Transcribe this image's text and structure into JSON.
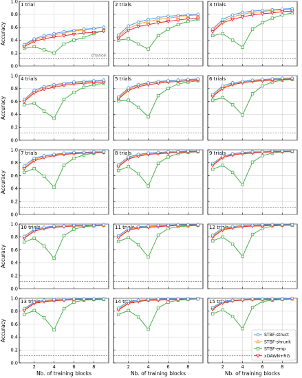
{
  "chart_data": {
    "type": "line",
    "ylabel": "Accuracy",
    "xlabel": "Nb. of training blocks",
    "xlim": [
      0.5,
      9.5
    ],
    "ylim": [
      0,
      1
    ],
    "x": [
      1,
      2,
      3,
      4,
      5,
      6,
      7,
      8,
      9
    ],
    "x_ticks": [
      2,
      4,
      6,
      8
    ],
    "y_ticks": [
      "0.0",
      "0.2",
      "0.4",
      "0.6",
      "0.8",
      "1.0"
    ],
    "grid": true,
    "chance_level": 0.111,
    "chance_label": "chance",
    "legend_placement": "lower-right of last panel",
    "series_styles": [
      {
        "name": "STBF-struct",
        "color": "#4a90e2",
        "marker": "circle"
      },
      {
        "name": "STBF-shrunk",
        "color": "#ff9a2e",
        "marker": "triangle-up"
      },
      {
        "name": "STBF-emp",
        "color": "#44b144",
        "marker": "square"
      },
      {
        "name": "xDAWN+RG",
        "color": "#e8252a",
        "marker": "triangle-down"
      }
    ],
    "panels": [
      {
        "title": "1 trial",
        "series": [
          {
            "name": "STBF-struct",
            "values": [
              0.33,
              0.42,
              0.47,
              0.5,
              0.53,
              0.55,
              0.57,
              0.58,
              0.6
            ]
          },
          {
            "name": "STBF-shrunk",
            "values": [
              0.32,
              0.4,
              0.45,
              0.48,
              0.51,
              0.54,
              0.56,
              0.58,
              0.6
            ]
          },
          {
            "name": "STBF-emp",
            "values": [
              0.27,
              0.3,
              0.25,
              0.2,
              0.34,
              0.4,
              0.44,
              0.5,
              0.55
            ]
          },
          {
            "name": "xDAWN+RG",
            "values": [
              0.3,
              0.38,
              0.42,
              0.45,
              0.47,
              0.49,
              0.51,
              0.52,
              0.54
            ]
          }
        ]
      },
      {
        "title": "2 trials",
        "series": [
          {
            "name": "STBF-struct",
            "values": [
              0.48,
              0.62,
              0.68,
              0.72,
              0.75,
              0.77,
              0.78,
              0.79,
              0.8
            ]
          },
          {
            "name": "STBF-shrunk",
            "values": [
              0.46,
              0.58,
              0.65,
              0.69,
              0.72,
              0.74,
              0.76,
              0.78,
              0.79
            ]
          },
          {
            "name": "STBF-emp",
            "values": [
              0.4,
              0.42,
              0.34,
              0.26,
              0.47,
              0.57,
              0.64,
              0.69,
              0.72
            ]
          },
          {
            "name": "xDAWN+RG",
            "values": [
              0.43,
              0.55,
              0.61,
              0.64,
              0.67,
              0.69,
              0.71,
              0.73,
              0.74
            ]
          }
        ]
      },
      {
        "title": "3 trials",
        "series": [
          {
            "name": "STBF-struct",
            "values": [
              0.57,
              0.72,
              0.79,
              0.83,
              0.85,
              0.86,
              0.87,
              0.88,
              0.89
            ]
          },
          {
            "name": "STBF-shrunk",
            "values": [
              0.55,
              0.69,
              0.76,
              0.8,
              0.83,
              0.84,
              0.86,
              0.87,
              0.88
            ]
          },
          {
            "name": "STBF-emp",
            "values": [
              0.47,
              0.5,
              0.4,
              0.29,
              0.57,
              0.67,
              0.74,
              0.79,
              0.82
            ]
          },
          {
            "name": "xDAWN+RG",
            "values": [
              0.53,
              0.67,
              0.72,
              0.76,
              0.79,
              0.81,
              0.82,
              0.84,
              0.85
            ]
          }
        ]
      },
      {
        "title": "4 trials",
        "series": [
          {
            "name": "STBF-struct",
            "values": [
              0.63,
              0.77,
              0.83,
              0.86,
              0.88,
              0.9,
              0.91,
              0.92,
              0.93
            ]
          },
          {
            "name": "STBF-shrunk",
            "values": [
              0.61,
              0.75,
              0.81,
              0.84,
              0.87,
              0.89,
              0.9,
              0.91,
              0.92
            ]
          },
          {
            "name": "STBF-emp",
            "values": [
              0.55,
              0.57,
              0.45,
              0.34,
              0.63,
              0.74,
              0.82,
              0.86,
              0.88
            ]
          },
          {
            "name": "xDAWN+RG",
            "values": [
              0.6,
              0.73,
              0.79,
              0.82,
              0.85,
              0.87,
              0.88,
              0.89,
              0.9
            ]
          }
        ]
      },
      {
        "title": "5 trials",
        "series": [
          {
            "name": "STBF-struct",
            "values": [
              0.67,
              0.81,
              0.86,
              0.89,
              0.91,
              0.92,
              0.93,
              0.94,
              0.95
            ]
          },
          {
            "name": "STBF-shrunk",
            "values": [
              0.65,
              0.79,
              0.85,
              0.88,
              0.9,
              0.91,
              0.93,
              0.94,
              0.94
            ]
          },
          {
            "name": "STBF-emp",
            "values": [
              0.61,
              0.62,
              0.51,
              0.36,
              0.69,
              0.8,
              0.87,
              0.9,
              0.92
            ]
          },
          {
            "name": "xDAWN+RG",
            "values": [
              0.64,
              0.77,
              0.83,
              0.86,
              0.88,
              0.9,
              0.91,
              0.92,
              0.93
            ]
          }
        ]
      },
      {
        "title": "6 trials",
        "series": [
          {
            "name": "STBF-struct",
            "values": [
              0.71,
              0.84,
              0.89,
              0.91,
              0.93,
              0.94,
              0.95,
              0.96,
              0.96
            ]
          },
          {
            "name": "STBF-shrunk",
            "values": [
              0.69,
              0.82,
              0.87,
              0.9,
              0.92,
              0.93,
              0.94,
              0.95,
              0.96
            ]
          },
          {
            "name": "STBF-emp",
            "values": [
              0.62,
              0.66,
              0.55,
              0.39,
              0.72,
              0.84,
              0.9,
              0.93,
              0.94
            ]
          },
          {
            "name": "xDAWN+RG",
            "values": [
              0.68,
              0.8,
              0.86,
              0.89,
              0.91,
              0.92,
              0.93,
              0.94,
              0.95
            ]
          }
        ]
      },
      {
        "title": "7 trials",
        "series": [
          {
            "name": "STBF-struct",
            "values": [
              0.75,
              0.87,
              0.91,
              0.93,
              0.95,
              0.96,
              0.96,
              0.97,
              0.97
            ]
          },
          {
            "name": "STBF-shrunk",
            "values": [
              0.72,
              0.85,
              0.9,
              0.92,
              0.94,
              0.95,
              0.96,
              0.96,
              0.97
            ]
          },
          {
            "name": "STBF-emp",
            "values": [
              0.65,
              0.71,
              0.59,
              0.42,
              0.76,
              0.87,
              0.92,
              0.95,
              0.96
            ]
          },
          {
            "name": "xDAWN+RG",
            "values": [
              0.71,
              0.83,
              0.88,
              0.91,
              0.93,
              0.94,
              0.95,
              0.95,
              0.96
            ]
          }
        ]
      },
      {
        "title": "8 trials",
        "series": [
          {
            "name": "STBF-struct",
            "values": [
              0.77,
              0.89,
              0.93,
              0.95,
              0.96,
              0.97,
              0.97,
              0.98,
              0.98
            ]
          },
          {
            "name": "STBF-shrunk",
            "values": [
              0.75,
              0.87,
              0.92,
              0.94,
              0.95,
              0.96,
              0.97,
              0.97,
              0.98
            ]
          },
          {
            "name": "STBF-emp",
            "values": [
              0.68,
              0.74,
              0.63,
              0.44,
              0.79,
              0.89,
              0.94,
              0.96,
              0.97
            ]
          },
          {
            "name": "xDAWN+RG",
            "values": [
              0.74,
              0.86,
              0.9,
              0.93,
              0.94,
              0.95,
              0.96,
              0.97,
              0.97
            ]
          }
        ]
      },
      {
        "title": "9 trials",
        "series": [
          {
            "name": "STBF-struct",
            "values": [
              0.79,
              0.9,
              0.94,
              0.96,
              0.97,
              0.97,
              0.98,
              0.98,
              0.98
            ]
          },
          {
            "name": "STBF-shrunk",
            "values": [
              0.77,
              0.89,
              0.93,
              0.95,
              0.96,
              0.97,
              0.97,
              0.98,
              0.98
            ]
          },
          {
            "name": "STBF-emp",
            "values": [
              0.7,
              0.76,
              0.65,
              0.46,
              0.81,
              0.91,
              0.95,
              0.97,
              0.97
            ]
          },
          {
            "name": "xDAWN+RG",
            "values": [
              0.76,
              0.88,
              0.92,
              0.94,
              0.95,
              0.96,
              0.97,
              0.97,
              0.98
            ]
          }
        ]
      },
      {
        "title": "10 trials",
        "series": [
          {
            "name": "STBF-struct",
            "values": [
              0.81,
              0.92,
              0.95,
              0.97,
              0.97,
              0.98,
              0.98,
              0.98,
              0.99
            ]
          },
          {
            "name": "STBF-shrunk",
            "values": [
              0.79,
              0.9,
              0.94,
              0.96,
              0.97,
              0.97,
              0.98,
              0.98,
              0.98
            ]
          },
          {
            "name": "STBF-emp",
            "values": [
              0.72,
              0.78,
              0.66,
              0.47,
              0.82,
              0.92,
              0.96,
              0.97,
              0.98
            ]
          },
          {
            "name": "xDAWN+RG",
            "values": [
              0.78,
              0.89,
              0.93,
              0.95,
              0.96,
              0.97,
              0.97,
              0.98,
              0.98
            ]
          }
        ]
      },
      {
        "title": "11 trials",
        "series": [
          {
            "name": "STBF-struct",
            "values": [
              0.82,
              0.93,
              0.96,
              0.97,
              0.98,
              0.98,
              0.99,
              0.99,
              0.99
            ]
          },
          {
            "name": "STBF-shrunk",
            "values": [
              0.8,
              0.91,
              0.95,
              0.96,
              0.97,
              0.98,
              0.98,
              0.98,
              0.99
            ]
          },
          {
            "name": "STBF-emp",
            "values": [
              0.73,
              0.79,
              0.68,
              0.49,
              0.83,
              0.93,
              0.96,
              0.97,
              0.98
            ]
          },
          {
            "name": "xDAWN+RG",
            "values": [
              0.79,
              0.9,
              0.94,
              0.95,
              0.96,
              0.97,
              0.98,
              0.98,
              0.98
            ]
          }
        ]
      },
      {
        "title": "12 trials",
        "series": [
          {
            "name": "STBF-struct",
            "values": [
              0.83,
              0.94,
              0.96,
              0.98,
              0.98,
              0.99,
              0.99,
              0.99,
              0.99
            ]
          },
          {
            "name": "STBF-shrunk",
            "values": [
              0.81,
              0.92,
              0.95,
              0.97,
              0.98,
              0.98,
              0.98,
              0.99,
              0.99
            ]
          },
          {
            "name": "STBF-emp",
            "values": [
              0.74,
              0.8,
              0.69,
              0.5,
              0.84,
              0.93,
              0.97,
              0.98,
              0.98
            ]
          },
          {
            "name": "xDAWN+RG",
            "values": [
              0.8,
              0.91,
              0.94,
              0.96,
              0.97,
              0.97,
              0.98,
              0.98,
              0.99
            ]
          }
        ]
      },
      {
        "title": "13 trials",
        "series": [
          {
            "name": "STBF-struct",
            "values": [
              0.84,
              0.94,
              0.97,
              0.98,
              0.98,
              0.99,
              0.99,
              0.99,
              0.99
            ]
          },
          {
            "name": "STBF-shrunk",
            "values": [
              0.82,
              0.93,
              0.96,
              0.97,
              0.98,
              0.98,
              0.99,
              0.99,
              0.99
            ]
          },
          {
            "name": "STBF-emp",
            "values": [
              0.75,
              0.81,
              0.7,
              0.51,
              0.84,
              0.94,
              0.97,
              0.98,
              0.98
            ]
          },
          {
            "name": "xDAWN+RG",
            "values": [
              0.81,
              0.92,
              0.95,
              0.96,
              0.97,
              0.98,
              0.98,
              0.98,
              0.99
            ]
          }
        ]
      },
      {
        "title": "14 trials",
        "series": [
          {
            "name": "STBF-struct",
            "values": [
              0.85,
              0.95,
              0.97,
              0.98,
              0.99,
              0.99,
              0.99,
              0.99,
              0.99
            ]
          },
          {
            "name": "STBF-shrunk",
            "values": [
              0.83,
              0.93,
              0.96,
              0.97,
              0.98,
              0.98,
              0.99,
              0.99,
              0.99
            ]
          },
          {
            "name": "STBF-emp",
            "values": [
              0.75,
              0.81,
              0.71,
              0.52,
              0.85,
              0.94,
              0.97,
              0.98,
              0.99
            ]
          },
          {
            "name": "xDAWN+RG",
            "values": [
              0.82,
              0.92,
              0.95,
              0.97,
              0.97,
              0.98,
              0.98,
              0.99,
              0.99
            ]
          }
        ]
      },
      {
        "title": "15 trials",
        "series": [
          {
            "name": "STBF-struct",
            "values": [
              0.86,
              0.95,
              0.97,
              0.98,
              0.99,
              0.99,
              0.99,
              0.99,
              1.0
            ]
          },
          {
            "name": "STBF-shrunk",
            "values": [
              0.84,
              0.94,
              0.96,
              0.98,
              0.98,
              0.99,
              0.99,
              0.99,
              0.99
            ]
          },
          {
            "name": "STBF-emp",
            "values": [
              0.76,
              0.82,
              0.72,
              0.53,
              0.86,
              0.95,
              0.97,
              0.98,
              0.99
            ]
          },
          {
            "name": "xDAWN+RG",
            "values": [
              0.83,
              0.93,
              0.96,
              0.97,
              0.98,
              0.98,
              0.98,
              0.99,
              0.99
            ]
          }
        ]
      }
    ]
  }
}
